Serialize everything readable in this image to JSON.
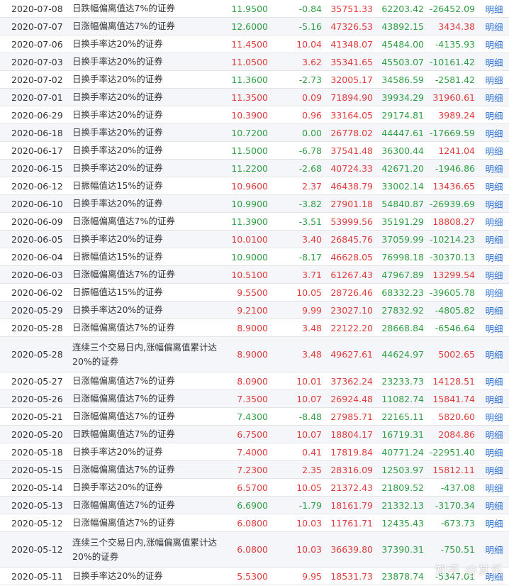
{
  "colors": {
    "up": "#e23b3b",
    "down": "#2f9e44",
    "link": "#2a6fd6"
  },
  "watermark": "知乎 @其乐",
  "rows": [
    {
      "date": "2020-07-08",
      "reason": "日跌幅偏离值达7%的证券",
      "close": "11.9500",
      "close_dir": "down",
      "chg": "-0.84",
      "chg_dir": "down",
      "buy": "35751.33",
      "sell": "62203.42",
      "net": "-26452.09",
      "net_dir": "down",
      "detail": "明细",
      "tall": false
    },
    {
      "date": "2020-07-07",
      "reason": "日涨幅偏离值达7%的证券",
      "close": "12.6000",
      "close_dir": "down",
      "chg": "-5.16",
      "chg_dir": "down",
      "buy": "47326.53",
      "sell": "43892.15",
      "net": "3434.38",
      "net_dir": "up",
      "detail": "明细",
      "tall": false
    },
    {
      "date": "2020-07-06",
      "reason": "日换手率达20%的证券",
      "close": "11.4500",
      "close_dir": "up",
      "chg": "10.04",
      "chg_dir": "up",
      "buy": "41348.07",
      "sell": "45484.00",
      "net": "-4135.93",
      "net_dir": "down",
      "detail": "明细",
      "tall": false
    },
    {
      "date": "2020-07-03",
      "reason": "日换手率达20%的证券",
      "close": "11.0500",
      "close_dir": "up",
      "chg": "3.62",
      "chg_dir": "up",
      "buy": "35341.65",
      "sell": "45503.07",
      "net": "-10161.42",
      "net_dir": "down",
      "detail": "明细",
      "tall": false
    },
    {
      "date": "2020-07-02",
      "reason": "日换手率达20%的证券",
      "close": "11.3600",
      "close_dir": "down",
      "chg": "-2.73",
      "chg_dir": "down",
      "buy": "32005.17",
      "sell": "34586.59",
      "net": "-2581.42",
      "net_dir": "down",
      "detail": "明细",
      "tall": false
    },
    {
      "date": "2020-07-01",
      "reason": "日换手率达20%的证券",
      "close": "11.3500",
      "close_dir": "up",
      "chg": "0.09",
      "chg_dir": "up",
      "buy": "71894.90",
      "sell": "39934.29",
      "net": "31960.61",
      "net_dir": "up",
      "detail": "明细",
      "tall": false
    },
    {
      "date": "2020-06-29",
      "reason": "日换手率达20%的证券",
      "close": "10.3900",
      "close_dir": "up",
      "chg": "0.96",
      "chg_dir": "up",
      "buy": "33164.05",
      "sell": "29174.81",
      "net": "3989.24",
      "net_dir": "up",
      "detail": "明细",
      "tall": false
    },
    {
      "date": "2020-06-18",
      "reason": "日换手率达20%的证券",
      "close": "10.7200",
      "close_dir": "down",
      "chg": "0.00",
      "chg_dir": "down",
      "buy": "26778.02",
      "sell": "44447.61",
      "net": "-17669.59",
      "net_dir": "down",
      "detail": "明细",
      "tall": false
    },
    {
      "date": "2020-06-17",
      "reason": "日换手率达20%的证券",
      "close": "11.5000",
      "close_dir": "down",
      "chg": "-6.78",
      "chg_dir": "down",
      "buy": "37541.48",
      "sell": "36300.44",
      "net": "1241.04",
      "net_dir": "up",
      "detail": "明细",
      "tall": false
    },
    {
      "date": "2020-06-15",
      "reason": "日换手率达20%的证券",
      "close": "11.2200",
      "close_dir": "down",
      "chg": "-2.68",
      "chg_dir": "down",
      "buy": "40724.33",
      "sell": "42671.20",
      "net": "-1946.86",
      "net_dir": "down",
      "detail": "明细",
      "tall": false
    },
    {
      "date": "2020-06-12",
      "reason": "日振幅值达15%的证券",
      "close": "10.9600",
      "close_dir": "up",
      "chg": "2.37",
      "chg_dir": "up",
      "buy": "46438.79",
      "sell": "33002.14",
      "net": "13436.65",
      "net_dir": "up",
      "detail": "明细",
      "tall": false
    },
    {
      "date": "2020-06-10",
      "reason": "日换手率达20%的证券",
      "close": "10.9900",
      "close_dir": "down",
      "chg": "-3.82",
      "chg_dir": "down",
      "buy": "27901.18",
      "sell": "54840.87",
      "net": "-26939.69",
      "net_dir": "down",
      "detail": "明细",
      "tall": false
    },
    {
      "date": "2020-06-09",
      "reason": "日涨幅偏离值达7%的证券",
      "close": "11.3900",
      "close_dir": "down",
      "chg": "-3.51",
      "chg_dir": "down",
      "buy": "53999.56",
      "sell": "35191.29",
      "net": "18808.27",
      "net_dir": "up",
      "detail": "明细",
      "tall": false
    },
    {
      "date": "2020-06-05",
      "reason": "日换手率达20%的证券",
      "close": "10.0100",
      "close_dir": "up",
      "chg": "3.40",
      "chg_dir": "up",
      "buy": "26845.76",
      "sell": "37059.99",
      "net": "-10214.23",
      "net_dir": "down",
      "detail": "明细",
      "tall": false
    },
    {
      "date": "2020-06-04",
      "reason": "日振幅值达15%的证券",
      "close": "10.9000",
      "close_dir": "down",
      "chg": "-8.17",
      "chg_dir": "down",
      "buy": "46628.05",
      "sell": "76998.18",
      "net": "-30370.13",
      "net_dir": "down",
      "detail": "明细",
      "tall": false
    },
    {
      "date": "2020-06-03",
      "reason": "日涨幅偏离值达7%的证券",
      "close": "10.5100",
      "close_dir": "up",
      "chg": "3.71",
      "chg_dir": "up",
      "buy": "61267.43",
      "sell": "47967.89",
      "net": "13299.54",
      "net_dir": "up",
      "detail": "明细",
      "tall": false
    },
    {
      "date": "2020-06-02",
      "reason": "日振幅值达15%的证券",
      "close": "9.5500",
      "close_dir": "up",
      "chg": "10.05",
      "chg_dir": "up",
      "buy": "28726.46",
      "sell": "68332.23",
      "net": "-39605.78",
      "net_dir": "down",
      "detail": "明细",
      "tall": false
    },
    {
      "date": "2020-05-29",
      "reason": "日换手率达20%的证券",
      "close": "9.2100",
      "close_dir": "up",
      "chg": "9.99",
      "chg_dir": "up",
      "buy": "23027.10",
      "sell": "27832.92",
      "net": "-4805.82",
      "net_dir": "down",
      "detail": "明细",
      "tall": false
    },
    {
      "date": "2020-05-28",
      "reason": "日涨幅偏离值达7%的证券",
      "close": "8.9000",
      "close_dir": "up",
      "chg": "3.48",
      "chg_dir": "up",
      "buy": "22122.20",
      "sell": "28668.84",
      "net": "-6546.64",
      "net_dir": "down",
      "detail": "明细",
      "tall": false
    },
    {
      "date": "2020-05-28",
      "reason": "连续三个交易日内,涨幅偏离值累计达20%的证券",
      "close": "8.9000",
      "close_dir": "up",
      "chg": "3.48",
      "chg_dir": "up",
      "buy": "49627.61",
      "sell": "44624.97",
      "net": "5002.65",
      "net_dir": "up",
      "detail": "明细",
      "tall": true
    },
    {
      "date": "2020-05-27",
      "reason": "日涨幅偏离值达7%的证券",
      "close": "8.0900",
      "close_dir": "up",
      "chg": "10.01",
      "chg_dir": "up",
      "buy": "37362.24",
      "sell": "23233.73",
      "net": "14128.51",
      "net_dir": "up",
      "detail": "明细",
      "tall": false
    },
    {
      "date": "2020-05-26",
      "reason": "日涨幅偏离值达7%的证券",
      "close": "7.3500",
      "close_dir": "up",
      "chg": "10.07",
      "chg_dir": "up",
      "buy": "26924.48",
      "sell": "11082.74",
      "net": "15841.74",
      "net_dir": "up",
      "detail": "明细",
      "tall": false
    },
    {
      "date": "2020-05-21",
      "reason": "日涨幅偏离值达7%的证券",
      "close": "7.4300",
      "close_dir": "down",
      "chg": "-8.48",
      "chg_dir": "down",
      "buy": "27985.71",
      "sell": "22165.11",
      "net": "5820.60",
      "net_dir": "up",
      "detail": "明细",
      "tall": false
    },
    {
      "date": "2020-05-20",
      "reason": "日跌幅偏离值达7%的证券",
      "close": "6.7500",
      "close_dir": "up",
      "chg": "10.07",
      "chg_dir": "up",
      "buy": "18804.17",
      "sell": "16719.31",
      "net": "2084.86",
      "net_dir": "up",
      "detail": "明细",
      "tall": false
    },
    {
      "date": "2020-05-18",
      "reason": "日换手率达20%的证券",
      "close": "7.4000",
      "close_dir": "up",
      "chg": "0.41",
      "chg_dir": "up",
      "buy": "17819.84",
      "sell": "40771.24",
      "net": "-22951.40",
      "net_dir": "down",
      "detail": "明细",
      "tall": false
    },
    {
      "date": "2020-05-15",
      "reason": "日涨幅偏离值达7%的证券",
      "close": "7.2300",
      "close_dir": "up",
      "chg": "2.35",
      "chg_dir": "up",
      "buy": "28316.09",
      "sell": "12503.97",
      "net": "15812.11",
      "net_dir": "up",
      "detail": "明细",
      "tall": false
    },
    {
      "date": "2020-05-14",
      "reason": "日换手率达20%的证券",
      "close": "6.5700",
      "close_dir": "up",
      "chg": "10.05",
      "chg_dir": "up",
      "buy": "21372.43",
      "sell": "21809.52",
      "net": "-437.08",
      "net_dir": "down",
      "detail": "明细",
      "tall": false
    },
    {
      "date": "2020-05-13",
      "reason": "日涨幅偏离值达7%的证券",
      "close": "6.6900",
      "close_dir": "down",
      "chg": "-1.79",
      "chg_dir": "down",
      "buy": "18161.79",
      "sell": "21332.13",
      "net": "-3170.34",
      "net_dir": "down",
      "detail": "明细",
      "tall": false
    },
    {
      "date": "2020-05-12",
      "reason": "日涨幅偏离值达7%的证券",
      "close": "6.0800",
      "close_dir": "up",
      "chg": "10.03",
      "chg_dir": "up",
      "buy": "11761.71",
      "sell": "12435.43",
      "net": "-673.73",
      "net_dir": "down",
      "detail": "明细",
      "tall": false
    },
    {
      "date": "2020-05-12",
      "reason": "连续三个交易日内,涨幅偏离值累计达20%的证券",
      "close": "6.0800",
      "close_dir": "up",
      "chg": "10.03",
      "chg_dir": "up",
      "buy": "36639.80",
      "sell": "37390.31",
      "net": "-750.51",
      "net_dir": "down",
      "detail": "明细",
      "tall": true
    },
    {
      "date": "2020-05-11",
      "reason": "日换手率达20%的证券",
      "close": "5.5300",
      "close_dir": "up",
      "chg": "9.95",
      "chg_dir": "up",
      "buy": "18531.73",
      "sell": "23878.74",
      "net": "-5347.01",
      "net_dir": "down",
      "detail": "明细",
      "tall": false
    }
  ]
}
